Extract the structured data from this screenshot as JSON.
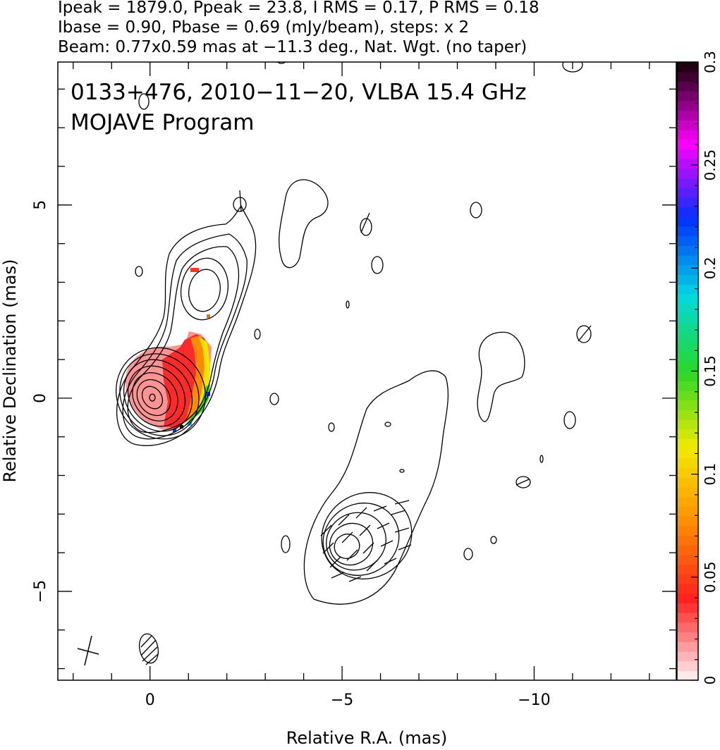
{
  "header": {
    "line1": "Ipeak = 1879.0, Ppeak = 23.8, I RMS = 0.17, P RMS = 0.18",
    "line2": "Ibase = 0.90, Pbase = 0.69 (mJy/beam), steps: x 2",
    "line3": "Beam: 0.77x0.59 mas at −11.3 deg., Nat. Wgt. (no taper)"
  },
  "chart_data": {
    "type": "heatmap",
    "title": "0133+476, 2010−11−20, VLBA 15.4 GHz",
    "subtitle": "MOJAVE Program",
    "xlabel": "Relative R.A. (mas)",
    "ylabel": "Relative Declination (mas)",
    "xlim": [
      2.4,
      -13.7
    ],
    "ylim": [
      -7.3,
      8.7
    ],
    "x_reversed": true,
    "grid": false,
    "x_ticks": [
      {
        "value": 0,
        "label": "0"
      },
      {
        "value": -5,
        "label": "−5"
      },
      {
        "value": -10,
        "label": "−10"
      }
    ],
    "y_ticks": [
      {
        "value": -5,
        "label": "−5"
      },
      {
        "value": 0,
        "label": "0"
      },
      {
        "value": 5,
        "label": "5"
      }
    ],
    "core": {
      "ra": 0.0,
      "dec": 0.0,
      "contour_levels": 11
    },
    "secondary_component": {
      "ra": -1.1,
      "dec": 2.9
    },
    "jet_knot": {
      "ra": -5.0,
      "dec": -3.8,
      "contour_levels": 6
    },
    "beam": {
      "major_mas": 0.77,
      "minor_mas": 0.59,
      "pa_deg": -11.3,
      "ra": 0.0,
      "dec": -6.6
    },
    "stokes_i_peak": 1879.0,
    "polarized_peak": 23.8,
    "colorbar": {
      "min": 0,
      "max": 0.3,
      "ticks": [
        {
          "value": 0,
          "label": "0"
        },
        {
          "value": 0.05,
          "label": "0.05"
        },
        {
          "value": 0.1,
          "label": "0.1"
        },
        {
          "value": 0.15,
          "label": "0.15"
        },
        {
          "value": 0.2,
          "label": "0.2"
        },
        {
          "value": 0.25,
          "label": "0.25"
        },
        {
          "value": 0.3,
          "label": "0.3"
        }
      ],
      "colors": [
        "#ffe8ea",
        "#ff2020",
        "#ff8c00",
        "#f2ea00",
        "#28d828",
        "#00d8e0",
        "#0030ff",
        "#ff00ff",
        "#200010"
      ]
    }
  }
}
